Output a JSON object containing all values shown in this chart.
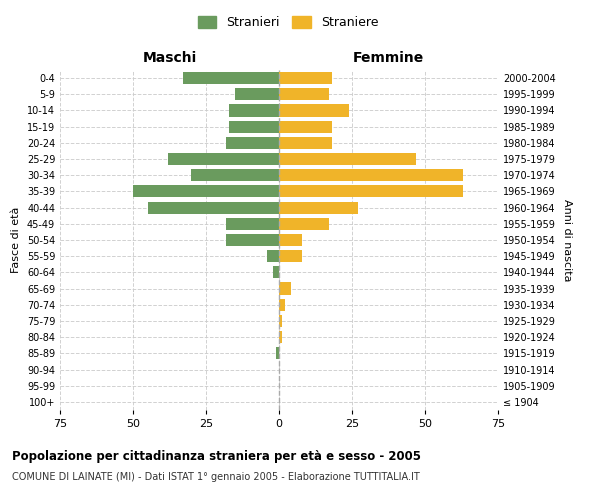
{
  "age_groups": [
    "100+",
    "95-99",
    "90-94",
    "85-89",
    "80-84",
    "75-79",
    "70-74",
    "65-69",
    "60-64",
    "55-59",
    "50-54",
    "45-49",
    "40-44",
    "35-39",
    "30-34",
    "25-29",
    "20-24",
    "15-19",
    "10-14",
    "5-9",
    "0-4"
  ],
  "birth_years": [
    "≤ 1904",
    "1905-1909",
    "1910-1914",
    "1915-1919",
    "1920-1924",
    "1925-1929",
    "1930-1934",
    "1935-1939",
    "1940-1944",
    "1945-1949",
    "1950-1954",
    "1955-1959",
    "1960-1964",
    "1965-1969",
    "1970-1974",
    "1975-1979",
    "1980-1984",
    "1985-1989",
    "1990-1994",
    "1995-1999",
    "2000-2004"
  ],
  "males": [
    0,
    0,
    0,
    1,
    0,
    0,
    0,
    0,
    2,
    4,
    18,
    18,
    45,
    50,
    30,
    38,
    18,
    17,
    17,
    15,
    33
  ],
  "females": [
    0,
    0,
    0,
    0,
    1,
    1,
    2,
    4,
    0,
    8,
    8,
    17,
    27,
    63,
    63,
    47,
    18,
    18,
    24,
    17,
    18
  ],
  "male_color": "#6a9b5e",
  "female_color": "#f0b429",
  "background_color": "#ffffff",
  "grid_color": "#cccccc",
  "title": "Popolazione per cittadinanza straniera per età e sesso - 2005",
  "subtitle": "COMUNE DI LAINATE (MI) - Dati ISTAT 1° gennaio 2005 - Elaborazione TUTTITALIA.IT",
  "xlabel_left": "Maschi",
  "xlabel_right": "Femmine",
  "ylabel_left": "Fasce di età",
  "ylabel_right": "Anni di nascita",
  "xlim": 75,
  "legend_labels": [
    "Stranieri",
    "Straniere"
  ]
}
